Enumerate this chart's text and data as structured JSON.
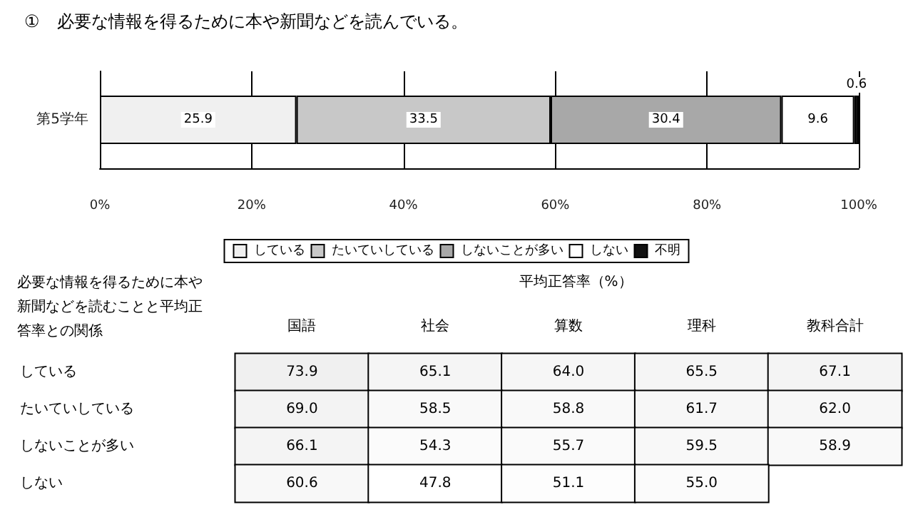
{
  "chart_data": [
    {
      "type": "bar",
      "orientation": "horizontal",
      "stacked": true,
      "title": "①　必要な情報を得るために本や新聞などを読んでいる。",
      "categories": [
        "第5学年"
      ],
      "series": [
        {
          "name": "している",
          "color": "#f0f0f0",
          "values": [
            25.9
          ]
        },
        {
          "name": "たいていしている",
          "color": "#c8c8c8",
          "values": [
            33.5
          ]
        },
        {
          "name": "しないことが多い",
          "color": "#a8a8a8",
          "values": [
            30.4
          ]
        },
        {
          "name": "しない",
          "color": "#ffffff",
          "values": [
            9.6
          ]
        },
        {
          "name": "不明",
          "color": "#111111",
          "values": [
            0.6
          ]
        }
      ],
      "xlim": [
        0,
        100
      ],
      "xticks": [
        {
          "value": 0,
          "label": "0%"
        },
        {
          "value": 20,
          "label": "20%"
        },
        {
          "value": 40,
          "label": "40%"
        },
        {
          "value": 60,
          "label": "60%"
        },
        {
          "value": 80,
          "label": "80%"
        },
        {
          "value": 100,
          "label": "100%"
        }
      ],
      "grid": "x",
      "legend": "bottom",
      "data_labels": true
    },
    {
      "type": "heatmap",
      "title": "平均正答率（%）",
      "ylabel": "必要な情報を得るために本や新聞などを読むことと平均正答率との関係",
      "categories": [
        "国語",
        "社会",
        "算数",
        "理科",
        "教科合計"
      ],
      "y_categories": [
        "している",
        "たいていしている",
        "しないことが多い",
        "しない"
      ],
      "data_labels": true,
      "cells": [
        [
          73.9,
          65.1,
          64.0,
          65.5,
          67.1
        ],
        [
          69.0,
          58.5,
          58.8,
          61.7,
          62.0
        ],
        [
          66.1,
          54.3,
          55.7,
          59.5,
          58.9
        ],
        [
          60.6,
          47.8,
          51.1,
          55.0,
          null
        ]
      ],
      "cell_labels": [
        [
          "73.9",
          "65.1",
          "64.0",
          "65.5",
          "67.1"
        ],
        [
          "69.0",
          "58.5",
          "58.8",
          "61.7",
          "62.0"
        ],
        [
          "66.1",
          "54.3",
          "55.7",
          "59.5",
          "58.9"
        ],
        [
          "60.6",
          "47.8",
          "51.1",
          "55.0",
          null
        ]
      ]
    }
  ]
}
